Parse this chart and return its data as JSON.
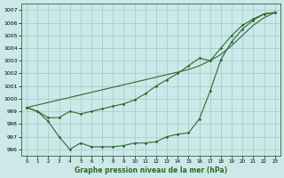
{
  "x": [
    0,
    1,
    2,
    3,
    4,
    5,
    6,
    7,
    8,
    9,
    10,
    11,
    12,
    13,
    14,
    15,
    16,
    17,
    18,
    19,
    20,
    21,
    22,
    23
  ],
  "y_straight": [
    999.3,
    999.5,
    999.7,
    999.9,
    1000.1,
    1000.3,
    1000.5,
    1000.7,
    1000.9,
    1001.1,
    1001.3,
    1001.5,
    1001.7,
    1001.9,
    1002.1,
    1002.3,
    1002.6,
    1003.0,
    1003.5,
    1004.2,
    1005.0,
    1005.8,
    1006.4,
    1006.8
  ],
  "y_mid": [
    999.3,
    999.0,
    998.5,
    998.5,
    999.0,
    998.8,
    999.0,
    999.2,
    999.4,
    999.6,
    999.9,
    1000.4,
    1001.0,
    1001.5,
    1002.0,
    1002.6,
    1003.2,
    1003.0,
    1004.0,
    1005.0,
    1005.8,
    1006.3,
    1006.7,
    1006.8
  ],
  "y_low": [
    999.3,
    999.0,
    998.2,
    997.0,
    996.0,
    996.5,
    996.2,
    996.2,
    996.2,
    996.3,
    996.5,
    996.5,
    996.6,
    997.0,
    997.2,
    997.3,
    998.4,
    1000.6,
    1003.1,
    1004.5,
    1005.5,
    1006.2,
    1006.7,
    1006.8
  ],
  "ylim": [
    995.5,
    1007.5
  ],
  "yticks": [
    996,
    997,
    998,
    999,
    1000,
    1001,
    1002,
    1003,
    1004,
    1005,
    1006,
    1007
  ],
  "xlim": [
    -0.5,
    23.5
  ],
  "xlabel": "Graphe pression niveau de la mer (hPa)",
  "line_color": "#2d6a2d",
  "bg_color": "#cce8e8",
  "grid_color": "#99cccc",
  "figwidth": 3.2,
  "figheight": 2.0,
  "dpi": 100
}
